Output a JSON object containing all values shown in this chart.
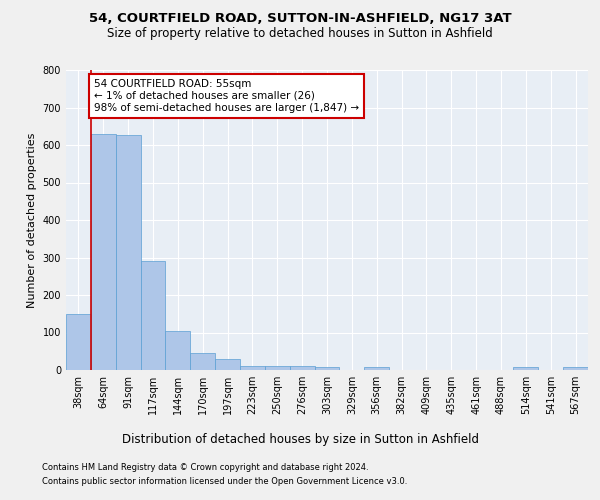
{
  "title": "54, COURTFIELD ROAD, SUTTON-IN-ASHFIELD, NG17 3AT",
  "subtitle": "Size of property relative to detached houses in Sutton in Ashfield",
  "xlabel": "Distribution of detached houses by size in Sutton in Ashfield",
  "ylabel": "Number of detached properties",
  "footnote1": "Contains HM Land Registry data © Crown copyright and database right 2024.",
  "footnote2": "Contains public sector information licensed under the Open Government Licence v3.0.",
  "categories": [
    "38sqm",
    "64sqm",
    "91sqm",
    "117sqm",
    "144sqm",
    "170sqm",
    "197sqm",
    "223sqm",
    "250sqm",
    "276sqm",
    "303sqm",
    "329sqm",
    "356sqm",
    "382sqm",
    "409sqm",
    "435sqm",
    "461sqm",
    "488sqm",
    "514sqm",
    "541sqm",
    "567sqm"
  ],
  "values": [
    150,
    630,
    628,
    290,
    105,
    46,
    30,
    12,
    12,
    12,
    8,
    0,
    8,
    0,
    0,
    0,
    0,
    0,
    8,
    0,
    8
  ],
  "bar_color": "#aec6e8",
  "bar_edge_color": "#5a9fd4",
  "bg_color": "#e8eef5",
  "grid_color": "#ffffff",
  "annotation_line1": "54 COURTFIELD ROAD: 55sqm",
  "annotation_line2": "← 1% of detached houses are smaller (26)",
  "annotation_line3": "98% of semi-detached houses are larger (1,847) →",
  "annotation_box_color": "#cc0000",
  "vline_color": "#cc0000",
  "ylim": [
    0,
    800
  ],
  "yticks": [
    0,
    100,
    200,
    300,
    400,
    500,
    600,
    700,
    800
  ],
  "title_fontsize": 9.5,
  "subtitle_fontsize": 8.5,
  "ylabel_fontsize": 8,
  "xlabel_fontsize": 8.5,
  "annotation_fontsize": 7.5,
  "tick_fontsize": 7,
  "footnote_fontsize": 6
}
